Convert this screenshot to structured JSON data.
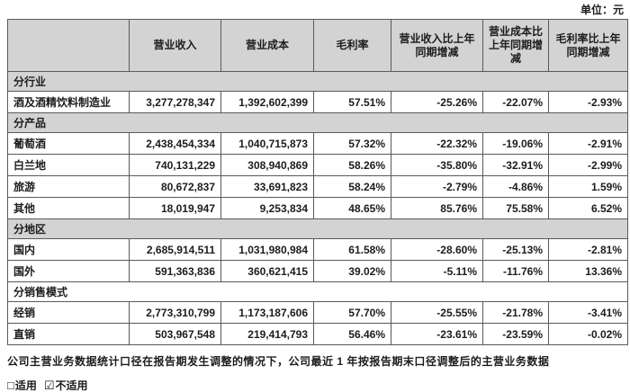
{
  "unit_label": "单位：元",
  "table": {
    "columns": [
      "",
      "营业收入",
      "营业成本",
      "毛利率",
      "营业收入比上年同期增减",
      "营业成本比上年同期增减",
      "毛利率比上年同期增减"
    ],
    "rows": [
      {
        "type": "section",
        "shaded": true,
        "label": "分行业"
      },
      {
        "type": "data",
        "cells": [
          "酒及酒精饮料制造业",
          "3,277,278,347",
          "1,392,602,399",
          "57.51%",
          "-25.26%",
          "-22.07%",
          "-2.93%"
        ]
      },
      {
        "type": "section",
        "shaded": true,
        "label": "分产品"
      },
      {
        "type": "data",
        "cells": [
          "葡萄酒",
          "2,438,454,334",
          "1,040,715,873",
          "57.32%",
          "-22.32%",
          "-19.06%",
          "-2.91%"
        ]
      },
      {
        "type": "data",
        "cells": [
          "白兰地",
          "740,131,229",
          "308,940,869",
          "58.26%",
          "-35.80%",
          "-32.91%",
          "-2.99%"
        ]
      },
      {
        "type": "data",
        "cells": [
          "旅游",
          "80,672,837",
          "33,691,823",
          "58.24%",
          "-2.79%",
          "-4.86%",
          "1.59%"
        ]
      },
      {
        "type": "data",
        "cells": [
          "其他",
          "18,019,947",
          "9,253,834",
          "48.65%",
          "85.76%",
          "75.58%",
          "6.52%"
        ]
      },
      {
        "type": "section",
        "shaded": true,
        "label": "分地区"
      },
      {
        "type": "data",
        "cells": [
          "国内",
          "2,685,914,511",
          "1,031,980,984",
          "61.58%",
          "-28.60%",
          "-25.13%",
          "-2.81%"
        ]
      },
      {
        "type": "data",
        "cells": [
          "国外",
          "591,363,836",
          "360,621,415",
          "39.02%",
          "-5.11%",
          "-11.76%",
          "13.36%"
        ]
      },
      {
        "type": "section",
        "shaded": false,
        "label": "分销售模式"
      },
      {
        "type": "data",
        "cells": [
          "经销",
          "2,773,310,799",
          "1,173,187,606",
          "57.70%",
          "-25.55%",
          "-21.78%",
          "-3.41%"
        ]
      },
      {
        "type": "data",
        "cells": [
          "直销",
          "503,967,548",
          "219,414,793",
          "56.46%",
          "-23.61%",
          "-23.59%",
          "-0.02%"
        ]
      }
    ]
  },
  "footer": {
    "note": "公司主营业务数据统计口径在报告期发生调整的情况下，公司最近 1 年按报告期末口径调整后的主营业务数据",
    "applicable_box": "□",
    "applicable_label": "适用",
    "not_applicable_box": "☑",
    "not_applicable_label": "不适用"
  },
  "colors": {
    "section_fill": "#d3d3d3",
    "border": "#595959",
    "text": "#1c1c1c",
    "background": "#ffffff"
  }
}
